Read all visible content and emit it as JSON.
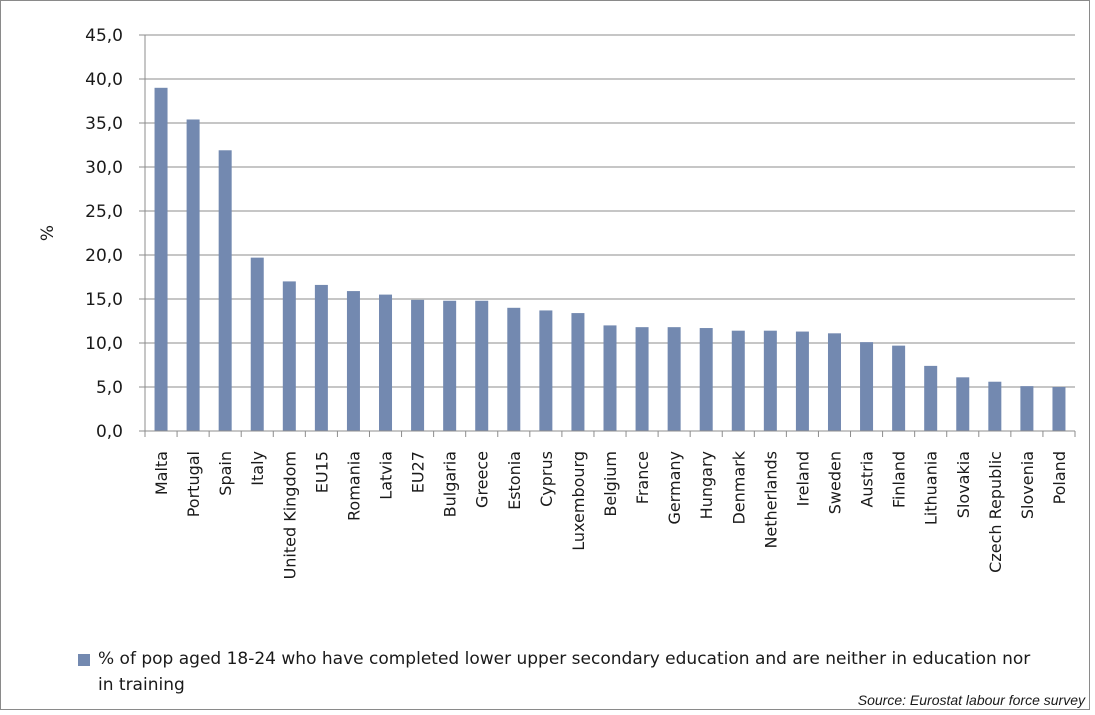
{
  "chart_data": {
    "type": "bar",
    "ylabel": "%",
    "ylim": [
      0,
      45
    ],
    "ytick_step": 5,
    "yticks": [
      "0,0",
      "5,0",
      "10,0",
      "15,0",
      "20,0",
      "25,0",
      "30,0",
      "35,0",
      "40,0",
      "45,0"
    ],
    "grid": true,
    "legend_position": "bottom",
    "categories": [
      "Malta",
      "Portugal",
      "Spain",
      "Italy",
      "United Kingdom",
      "EU15",
      "Romania",
      "Latvia",
      "EU27",
      "Bulgaria",
      "Greece",
      "Estonia",
      "Cyprus",
      "Luxembourg",
      "Belgium",
      "France",
      "Germany",
      "Hungary",
      "Denmark",
      "Netherlands",
      "Ireland",
      "Sweden",
      "Austria",
      "Finland",
      "Lithuania",
      "Slovakia",
      "Czech Republic",
      "Slovenia",
      "Poland"
    ],
    "series": [
      {
        "name": "% of pop aged 18-24 who have completed lower upper secondary education and are neither in education nor in training",
        "color": "#7389b0",
        "values": [
          39.0,
          35.4,
          31.9,
          19.7,
          17.0,
          16.6,
          15.9,
          15.5,
          14.9,
          14.8,
          14.8,
          14.0,
          13.7,
          13.4,
          12.0,
          11.8,
          11.8,
          11.7,
          11.4,
          11.4,
          11.3,
          11.1,
          10.1,
          9.7,
          7.4,
          6.1,
          5.6,
          5.1,
          5.0
        ]
      }
    ]
  },
  "source": "Source: Eurostat labour force survey"
}
